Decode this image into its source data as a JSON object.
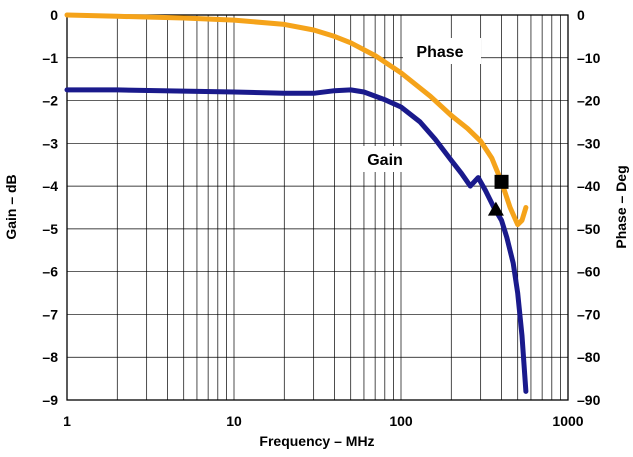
{
  "chart_data": {
    "type": "line",
    "xlabel": "Frequency – MHz",
    "ylabel_left": "Gain – dB",
    "ylabel_right": "Phase – Deg",
    "x_scale": "log",
    "xlim": [
      1,
      1000
    ],
    "ylim_left": [
      -9,
      0
    ],
    "ylim_right": [
      -90,
      0
    ],
    "x_ticks": [
      1,
      10,
      100,
      1000
    ],
    "x_tick_labels": [
      "1",
      "10",
      "100",
      "1000"
    ],
    "y_left_ticks": [
      0,
      -1,
      -2,
      -3,
      -4,
      -5,
      -6,
      -7,
      -8,
      -9
    ],
    "y_left_tick_labels": [
      "0",
      "–1",
      "–2",
      "–3",
      "–4",
      "–5",
      "–6",
      "–7",
      "–8",
      "–9"
    ],
    "y_right_ticks": [
      0,
      -10,
      -20,
      -30,
      -40,
      -50,
      -60,
      -70,
      -80,
      -90
    ],
    "y_right_tick_labels": [
      "0",
      "–10",
      "–20",
      "–30",
      "–40",
      "–50",
      "–60",
      "–70",
      "–80",
      "–90"
    ],
    "grid": true,
    "series": [
      {
        "name": "Gain",
        "axis": "left",
        "color": "#1a1a8c",
        "x": [
          1,
          2,
          5,
          10,
          20,
          30,
          40,
          50,
          60,
          80,
          100,
          130,
          160,
          200,
          230,
          260,
          290,
          320,
          360,
          400,
          430,
          470,
          500,
          530,
          560
        ],
        "y": [
          -1.75,
          -1.75,
          -1.78,
          -1.8,
          -1.83,
          -1.83,
          -1.77,
          -1.75,
          -1.8,
          -1.98,
          -2.15,
          -2.5,
          -2.9,
          -3.4,
          -3.7,
          -4.0,
          -3.8,
          -4.1,
          -4.5,
          -4.8,
          -5.2,
          -5.8,
          -6.5,
          -7.5,
          -8.8
        ]
      },
      {
        "name": "Phase",
        "axis": "right",
        "color": "#f5a31a",
        "x": [
          1,
          2,
          5,
          10,
          20,
          30,
          40,
          50,
          70,
          100,
          150,
          200,
          250,
          300,
          350,
          400,
          450,
          500,
          530,
          560
        ],
        "y": [
          0,
          -0.3,
          -0.7,
          -1.2,
          -2.2,
          -3.5,
          -5.0,
          -6.5,
          -9.5,
          -13.5,
          -19.0,
          -23.5,
          -26.5,
          -29.5,
          -33.5,
          -39.0,
          -45.0,
          -49.0,
          -48.0,
          -45.0
        ]
      }
    ],
    "annotations": [
      {
        "marker": "square",
        "series": "Phase",
        "x": 400,
        "y": -39.0
      },
      {
        "marker": "triangle",
        "series": "Gain",
        "x": 370,
        "y": -4.55
      }
    ]
  }
}
